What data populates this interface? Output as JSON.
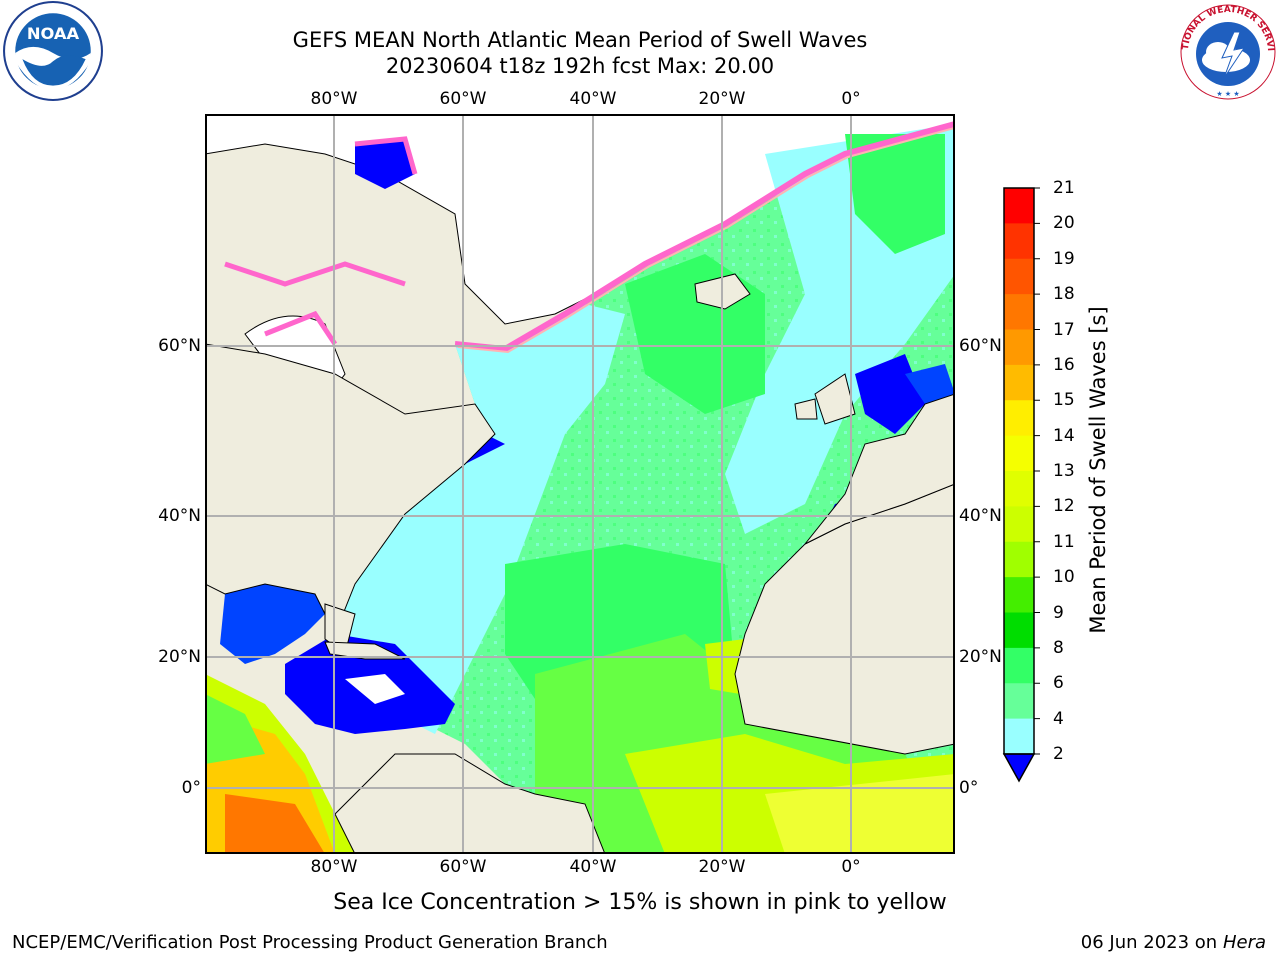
{
  "title": {
    "line1": "GEFS MEAN North Atlantic Mean Period of Swell Waves",
    "line2": "20230604 t18z 192h fcst   Max: 20.00"
  },
  "logos": {
    "left": {
      "icon": "noaa-logo",
      "text": "NOAA"
    },
    "right": {
      "icon": "nws-logo",
      "text": "NATIONAL WEATHER SERVICE"
    }
  },
  "map": {
    "longitude_ticks": [
      "80°W",
      "60°W",
      "40°W",
      "20°W",
      "0°"
    ],
    "latitude_ticks": [
      "60°N",
      "40°N",
      "20°N",
      "0°"
    ],
    "colors": {
      "land": "#efedde",
      "ice_land": "#ffffff",
      "grid": "#b0b0b0",
      "ice_edge": [
        "#ff66cc",
        "#ffb3b3",
        "#ffe066"
      ]
    }
  },
  "colorbar": {
    "label": "Mean Period of Swell Waves [s]",
    "ticks": [
      "21",
      "20",
      "19",
      "18",
      "17",
      "16",
      "15",
      "14",
      "13",
      "12",
      "11",
      "10",
      "9",
      "8",
      "6",
      "4",
      "2"
    ],
    "colors": [
      "#ff0000",
      "#ff3300",
      "#ff5500",
      "#ff7700",
      "#ff9900",
      "#ffbb00",
      "#ffee00",
      "#f5ff00",
      "#e0ff00",
      "#ccff00",
      "#a0ff00",
      "#44ee00",
      "#00dd00",
      "#33ff66",
      "#66ff99",
      "#99ffff",
      "#44eeff",
      "#00ffff",
      "#00ccff",
      "#0077ff",
      "#0000ff"
    ]
  },
  "footer": {
    "ice_note": "Sea Ice Concentration > 15% is shown in pink to yellow",
    "credit": "NCEP/EMC/Verification Post Processing Product Generation Branch",
    "date": "06 Jun 2023 on",
    "host": "Hera"
  }
}
